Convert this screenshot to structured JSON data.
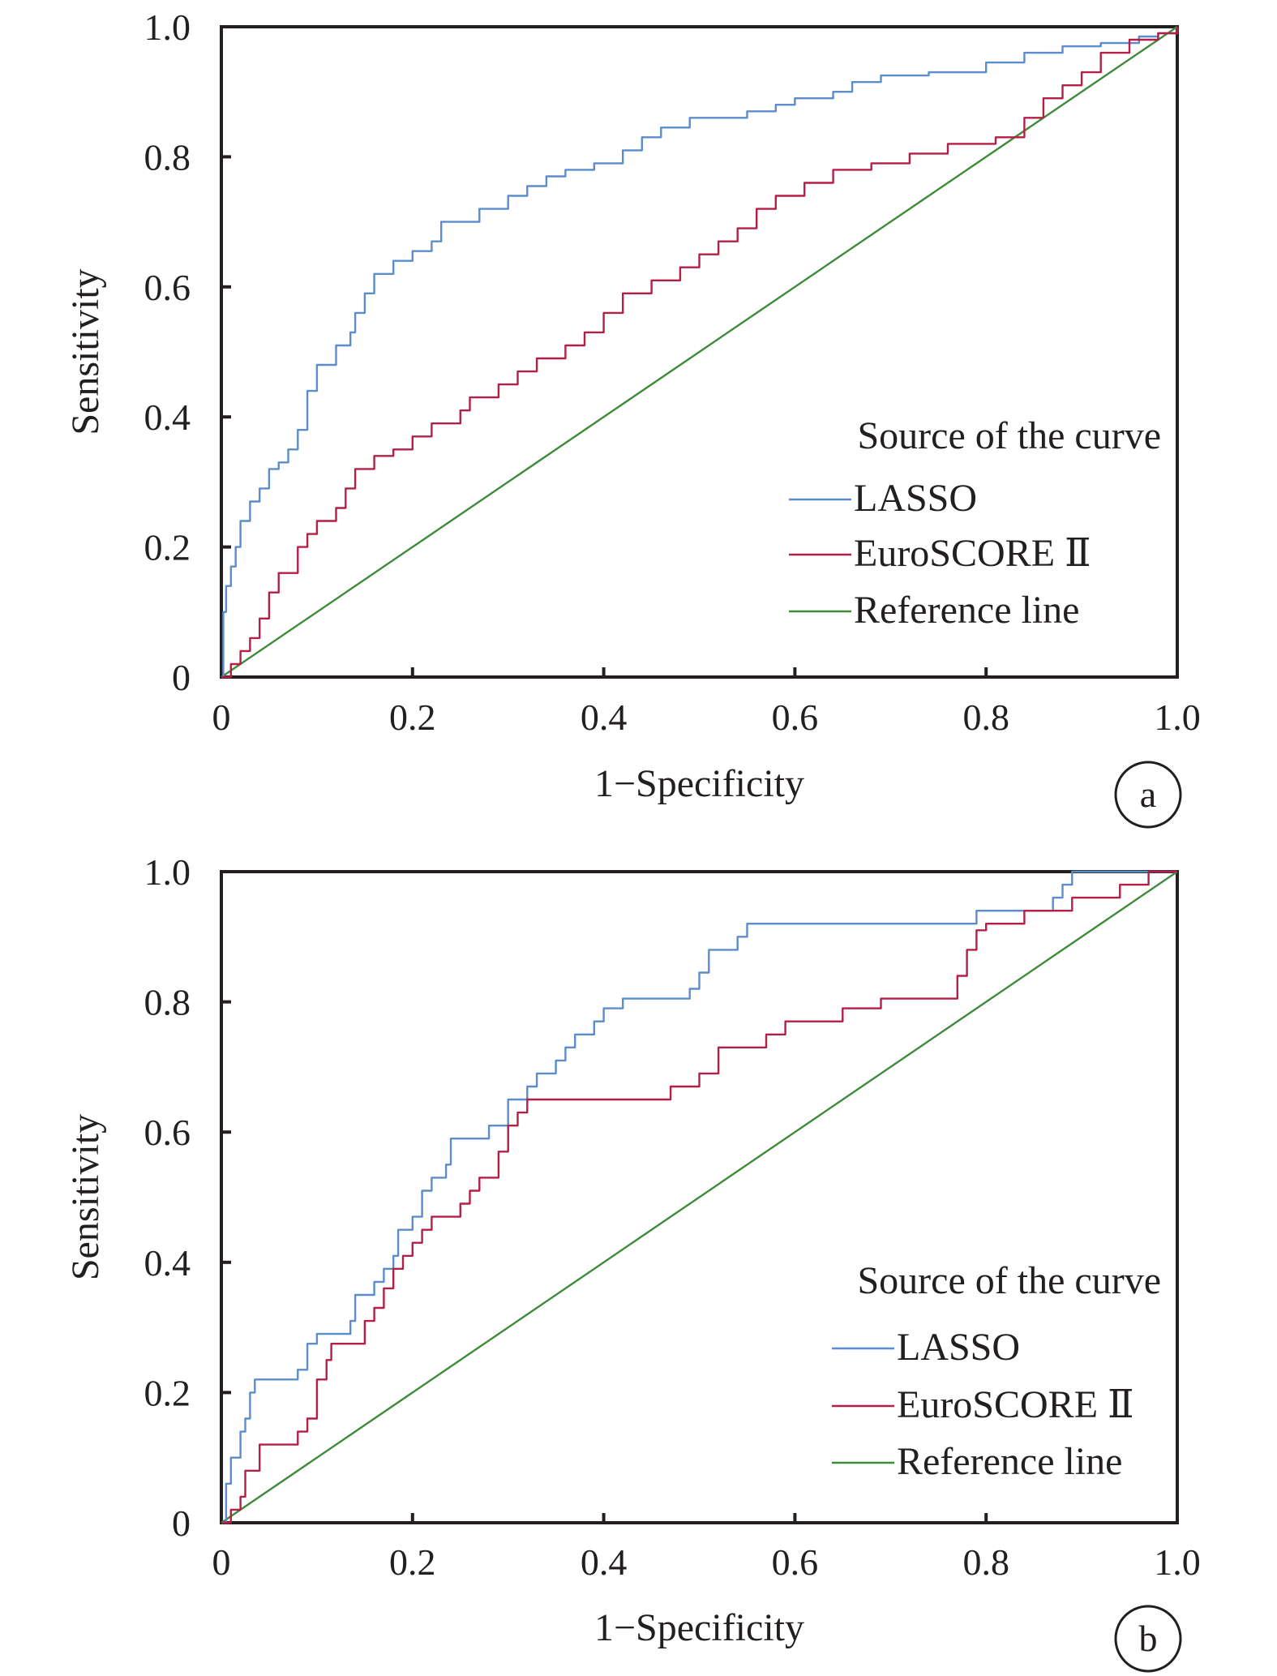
{
  "chart_data": [
    {
      "type": "line",
      "panel_label": "a",
      "xlabel": "1−Specificity",
      "ylabel": "Sensitivity",
      "xlim": [
        0,
        1.0
      ],
      "ylim": [
        0,
        1.0
      ],
      "xticks": [
        "0",
        "0.2",
        "0.4",
        "0.6",
        "0.8",
        "1.0"
      ],
      "yticks": [
        "0",
        "0.2",
        "0.4",
        "0.6",
        "0.8",
        "1.0"
      ],
      "grid": false,
      "legend": {
        "title": "Source of the curve",
        "placement": "bottom-right"
      },
      "series": [
        {
          "name": "LASSO",
          "color": "#5b8ccc",
          "step": true,
          "points": [
            [
              0,
              0
            ],
            [
              0.002,
              0.1
            ],
            [
              0.005,
              0.14
            ],
            [
              0.01,
              0.17
            ],
            [
              0.015,
              0.2
            ],
            [
              0.02,
              0.24
            ],
            [
              0.03,
              0.27
            ],
            [
              0.04,
              0.29
            ],
            [
              0.05,
              0.32
            ],
            [
              0.06,
              0.33
            ],
            [
              0.07,
              0.35
            ],
            [
              0.08,
              0.38
            ],
            [
              0.09,
              0.44
            ],
            [
              0.1,
              0.48
            ],
            [
              0.12,
              0.51
            ],
            [
              0.135,
              0.53
            ],
            [
              0.14,
              0.56
            ],
            [
              0.15,
              0.59
            ],
            [
              0.16,
              0.62
            ],
            [
              0.18,
              0.64
            ],
            [
              0.2,
              0.655
            ],
            [
              0.22,
              0.67
            ],
            [
              0.23,
              0.7
            ],
            [
              0.27,
              0.72
            ],
            [
              0.3,
              0.74
            ],
            [
              0.32,
              0.755
            ],
            [
              0.34,
              0.77
            ],
            [
              0.36,
              0.78
            ],
            [
              0.39,
              0.79
            ],
            [
              0.42,
              0.81
            ],
            [
              0.44,
              0.83
            ],
            [
              0.46,
              0.845
            ],
            [
              0.49,
              0.86
            ],
            [
              0.55,
              0.87
            ],
            [
              0.58,
              0.88
            ],
            [
              0.6,
              0.89
            ],
            [
              0.64,
              0.9
            ],
            [
              0.66,
              0.915
            ],
            [
              0.69,
              0.925
            ],
            [
              0.74,
              0.93
            ],
            [
              0.8,
              0.945
            ],
            [
              0.84,
              0.96
            ],
            [
              0.88,
              0.97
            ],
            [
              0.92,
              0.975
            ],
            [
              0.96,
              0.985
            ],
            [
              0.98,
              0.99
            ],
            [
              1,
              1
            ]
          ]
        },
        {
          "name": "EuroSCORE Ⅱ",
          "color": "#b51f45",
          "step": true,
          "points": [
            [
              0,
              0
            ],
            [
              0.01,
              0.02
            ],
            [
              0.02,
              0.04
            ],
            [
              0.03,
              0.06
            ],
            [
              0.04,
              0.09
            ],
            [
              0.05,
              0.13
            ],
            [
              0.06,
              0.16
            ],
            [
              0.08,
              0.2
            ],
            [
              0.09,
              0.22
            ],
            [
              0.1,
              0.24
            ],
            [
              0.12,
              0.26
            ],
            [
              0.13,
              0.29
            ],
            [
              0.14,
              0.32
            ],
            [
              0.16,
              0.34
            ],
            [
              0.18,
              0.35
            ],
            [
              0.2,
              0.37
            ],
            [
              0.22,
              0.39
            ],
            [
              0.25,
              0.41
            ],
            [
              0.26,
              0.43
            ],
            [
              0.29,
              0.45
            ],
            [
              0.31,
              0.47
            ],
            [
              0.33,
              0.49
            ],
            [
              0.36,
              0.51
            ],
            [
              0.38,
              0.53
            ],
            [
              0.4,
              0.56
            ],
            [
              0.42,
              0.59
            ],
            [
              0.45,
              0.61
            ],
            [
              0.48,
              0.63
            ],
            [
              0.5,
              0.65
            ],
            [
              0.52,
              0.67
            ],
            [
              0.54,
              0.69
            ],
            [
              0.56,
              0.72
            ],
            [
              0.58,
              0.74
            ],
            [
              0.61,
              0.76
            ],
            [
              0.64,
              0.78
            ],
            [
              0.68,
              0.79
            ],
            [
              0.72,
              0.805
            ],
            [
              0.76,
              0.82
            ],
            [
              0.81,
              0.83
            ],
            [
              0.84,
              0.86
            ],
            [
              0.86,
              0.89
            ],
            [
              0.88,
              0.91
            ],
            [
              0.9,
              0.93
            ],
            [
              0.92,
              0.96
            ],
            [
              0.95,
              0.98
            ],
            [
              0.98,
              0.99
            ],
            [
              1,
              1
            ]
          ]
        },
        {
          "name": "Reference line",
          "color": "#3f8b3a",
          "step": false,
          "points": [
            [
              0,
              0
            ],
            [
              1,
              1
            ]
          ]
        }
      ]
    },
    {
      "type": "line",
      "panel_label": "b",
      "xlabel": "1−Specificity",
      "ylabel": "Sensitivity",
      "xlim": [
        0,
        1.0
      ],
      "ylim": [
        0,
        1.0
      ],
      "xticks": [
        "0",
        "0.2",
        "0.4",
        "0.6",
        "0.8",
        "1.0"
      ],
      "yticks": [
        "0",
        "0.2",
        "0.4",
        "0.6",
        "0.8",
        "1.0"
      ],
      "grid": false,
      "legend": {
        "title": "Source of the curve",
        "placement": "bottom-right"
      },
      "series": [
        {
          "name": "LASSO",
          "color": "#5b8ccc",
          "step": true,
          "points": [
            [
              0,
              0
            ],
            [
              0.005,
              0.06
            ],
            [
              0.01,
              0.1
            ],
            [
              0.02,
              0.14
            ],
            [
              0.025,
              0.16
            ],
            [
              0.03,
              0.2
            ],
            [
              0.035,
              0.22
            ],
            [
              0.08,
              0.235
            ],
            [
              0.09,
              0.275
            ],
            [
              0.1,
              0.29
            ],
            [
              0.135,
              0.31
            ],
            [
              0.14,
              0.35
            ],
            [
              0.16,
              0.37
            ],
            [
              0.17,
              0.39
            ],
            [
              0.18,
              0.41
            ],
            [
              0.185,
              0.45
            ],
            [
              0.2,
              0.47
            ],
            [
              0.21,
              0.51
            ],
            [
              0.22,
              0.53
            ],
            [
              0.235,
              0.55
            ],
            [
              0.24,
              0.59
            ],
            [
              0.28,
              0.61
            ],
            [
              0.3,
              0.65
            ],
            [
              0.32,
              0.67
            ],
            [
              0.33,
              0.69
            ],
            [
              0.35,
              0.71
            ],
            [
              0.36,
              0.73
            ],
            [
              0.37,
              0.75
            ],
            [
              0.39,
              0.77
            ],
            [
              0.4,
              0.79
            ],
            [
              0.42,
              0.805
            ],
            [
              0.49,
              0.82
            ],
            [
              0.5,
              0.845
            ],
            [
              0.51,
              0.88
            ],
            [
              0.54,
              0.9
            ],
            [
              0.55,
              0.92
            ],
            [
              0.79,
              0.94
            ],
            [
              0.87,
              0.96
            ],
            [
              0.88,
              0.98
            ],
            [
              0.89,
              1.0
            ],
            [
              1,
              1
            ]
          ]
        },
        {
          "name": "EuroSCORE Ⅱ",
          "color": "#b51f45",
          "step": true,
          "points": [
            [
              0,
              0
            ],
            [
              0.01,
              0.02
            ],
            [
              0.02,
              0.04
            ],
            [
              0.025,
              0.08
            ],
            [
              0.04,
              0.12
            ],
            [
              0.08,
              0.14
            ],
            [
              0.09,
              0.16
            ],
            [
              0.1,
              0.22
            ],
            [
              0.11,
              0.25
            ],
            [
              0.115,
              0.275
            ],
            [
              0.15,
              0.31
            ],
            [
              0.16,
              0.33
            ],
            [
              0.17,
              0.36
            ],
            [
              0.18,
              0.39
            ],
            [
              0.19,
              0.41
            ],
            [
              0.2,
              0.43
            ],
            [
              0.21,
              0.45
            ],
            [
              0.22,
              0.47
            ],
            [
              0.25,
              0.49
            ],
            [
              0.26,
              0.51
            ],
            [
              0.27,
              0.53
            ],
            [
              0.29,
              0.57
            ],
            [
              0.3,
              0.61
            ],
            [
              0.31,
              0.63
            ],
            [
              0.32,
              0.65
            ],
            [
              0.47,
              0.67
            ],
            [
              0.5,
              0.69
            ],
            [
              0.52,
              0.73
            ],
            [
              0.57,
              0.75
            ],
            [
              0.59,
              0.77
            ],
            [
              0.65,
              0.79
            ],
            [
              0.69,
              0.805
            ],
            [
              0.77,
              0.84
            ],
            [
              0.78,
              0.88
            ],
            [
              0.79,
              0.91
            ],
            [
              0.8,
              0.92
            ],
            [
              0.84,
              0.94
            ],
            [
              0.89,
              0.96
            ],
            [
              0.94,
              0.98
            ],
            [
              0.97,
              1.0
            ],
            [
              1,
              1
            ]
          ]
        },
        {
          "name": "Reference line",
          "color": "#3f8b3a",
          "step": false,
          "points": [
            [
              0,
              0
            ],
            [
              1,
              1
            ]
          ]
        }
      ]
    }
  ]
}
